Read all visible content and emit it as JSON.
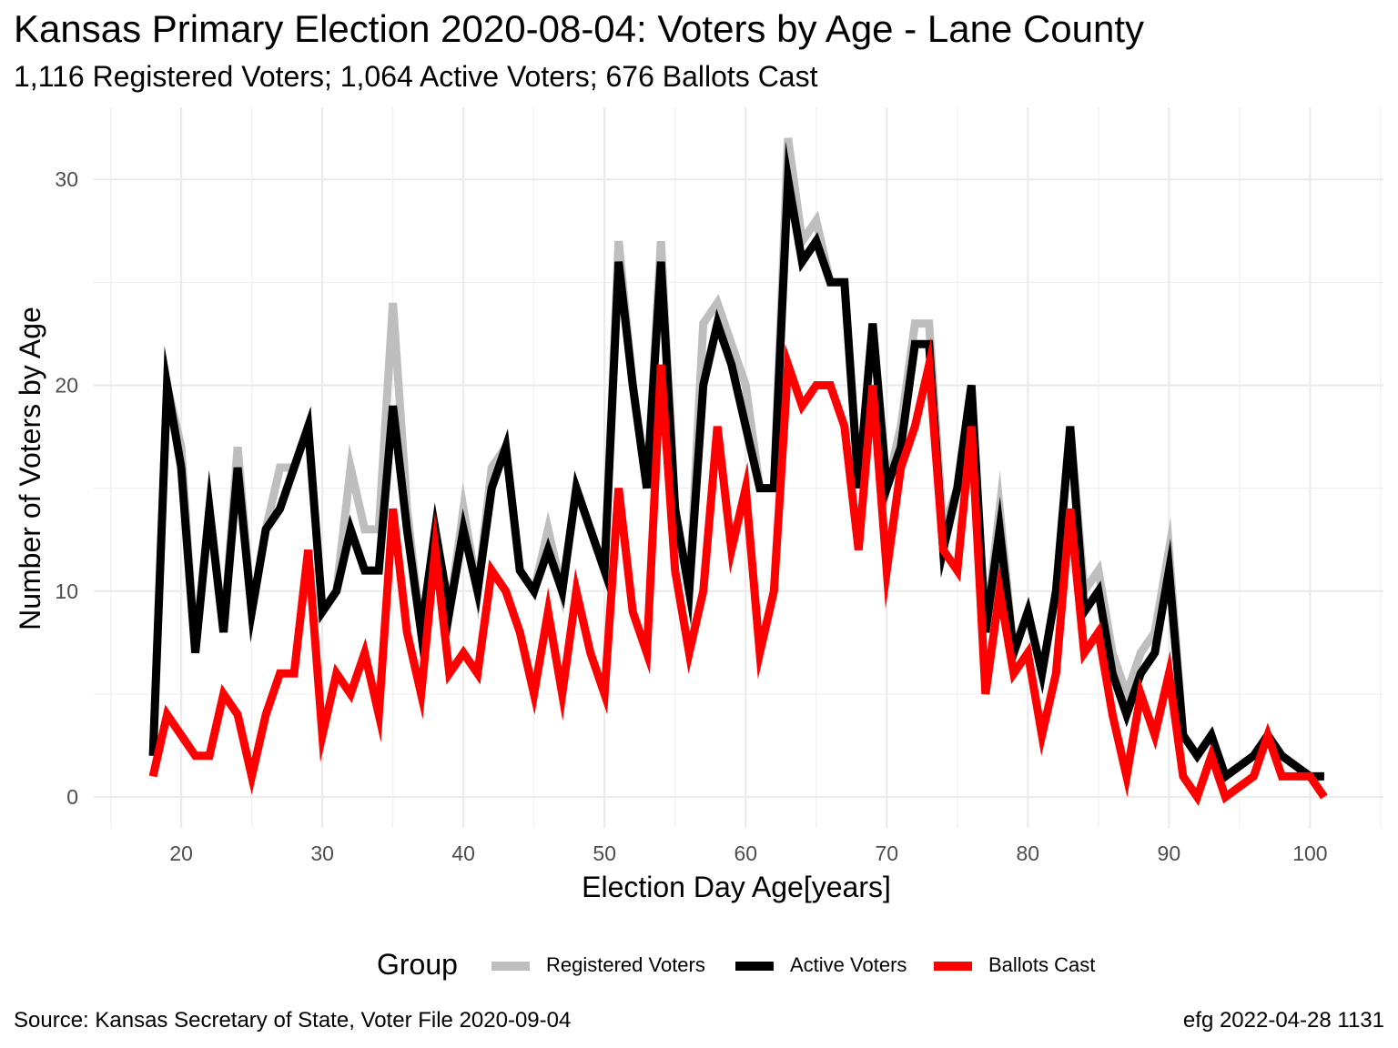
{
  "title": "Kansas Primary Election 2020-08-04:  Voters by Age - Lane County",
  "subtitle": "1,116 Registered Voters; 1,064 Active Voters; 676 Ballots Cast",
  "caption_left": "Source:  Kansas Secretary of State, Voter File  2020-09-04",
  "caption_right": "efg 2022-04-28 1131",
  "legend": {
    "title": "Group",
    "items": [
      {
        "label": "Registered Voters",
        "color": "#bebebe"
      },
      {
        "label": "Active Voters",
        "color": "#000000"
      },
      {
        "label": "Ballots Cast",
        "color": "#ff0000"
      }
    ]
  },
  "chart_data": {
    "type": "line",
    "title": "Kansas Primary Election 2020-08-04:  Voters by Age - Lane County",
    "subtitle": "1,116 Registered Voters; 1,064 Active Voters; 676 Ballots Cast",
    "xlabel": "Election Day Age[years]",
    "ylabel": "Number of Voters by Age",
    "xlim": [
      13.8,
      105.2
    ],
    "ylim": [
      -1.5,
      33.5
    ],
    "xticks": [
      20,
      30,
      40,
      50,
      60,
      70,
      80,
      90,
      100
    ],
    "yticks": [
      0,
      10,
      20,
      30
    ],
    "grid": true,
    "legend_position": "bottom",
    "x": [
      18,
      19,
      20,
      21,
      22,
      23,
      24,
      25,
      26,
      27,
      28,
      29,
      30,
      31,
      32,
      33,
      34,
      35,
      36,
      37,
      38,
      39,
      40,
      41,
      42,
      43,
      44,
      45,
      46,
      47,
      48,
      49,
      50,
      51,
      52,
      53,
      54,
      55,
      56,
      57,
      58,
      59,
      60,
      61,
      62,
      63,
      64,
      65,
      66,
      67,
      68,
      69,
      70,
      71,
      72,
      73,
      74,
      75,
      76,
      77,
      78,
      79,
      80,
      81,
      82,
      83,
      84,
      85,
      86,
      87,
      88,
      89,
      90,
      91,
      92,
      93,
      94,
      95,
      96,
      97,
      98,
      99,
      100,
      101
    ],
    "series": [
      {
        "name": "Registered Voters",
        "color": "#bebebe",
        "values": [
          2,
          20,
          17,
          7,
          14,
          8,
          17,
          9,
          13,
          16,
          16,
          18,
          9,
          10,
          16,
          13,
          13,
          24,
          14,
          8,
          13,
          9,
          14,
          10,
          16,
          17,
          11,
          10,
          13,
          10,
          15,
          13,
          11,
          27,
          20,
          15,
          27,
          14,
          10,
          23,
          24,
          22,
          20,
          15,
          15,
          32,
          27,
          28,
          25,
          25,
          15,
          23,
          15,
          18,
          23,
          23,
          13,
          15,
          20,
          8,
          14,
          7,
          9,
          6,
          10,
          18,
          10,
          11,
          7,
          5,
          7,
          8,
          12,
          3,
          2,
          3,
          1,
          1.5,
          2,
          3,
          2,
          1.5,
          1,
          1
        ]
      },
      {
        "name": "Active Voters",
        "color": "#000000",
        "values": [
          2,
          20,
          16,
          7,
          14,
          8,
          16,
          9,
          13,
          14,
          16,
          18,
          9,
          10,
          13,
          11,
          11,
          19,
          13,
          8,
          13,
          9,
          13,
          10,
          15,
          17,
          11,
          10,
          12,
          10,
          15,
          13,
          11,
          26,
          20,
          15,
          26,
          14,
          10,
          20,
          23,
          21,
          18,
          15,
          15,
          30,
          26,
          27,
          25,
          25,
          15,
          23,
          15,
          17,
          22,
          22,
          12,
          15,
          20,
          8,
          13,
          7,
          9,
          6,
          10,
          18,
          9,
          10,
          6,
          4,
          6,
          7,
          11,
          3,
          2,
          3,
          1,
          1.5,
          2,
          3,
          2,
          1.5,
          1,
          1
        ]
      },
      {
        "name": "Ballots Cast",
        "color": "#ff0000",
        "values": [
          1,
          4,
          3,
          2,
          2,
          5,
          4,
          1,
          4,
          6,
          6,
          12,
          3,
          6,
          5,
          7,
          4,
          14,
          8,
          5,
          12,
          6,
          7,
          6,
          11,
          10,
          8,
          5,
          9,
          5,
          10,
          7,
          5,
          15,
          9,
          7,
          21,
          11,
          7,
          10,
          18,
          12,
          15,
          7,
          10,
          21,
          19,
          20,
          20,
          18,
          12,
          20,
          11,
          16,
          18,
          21,
          12,
          11,
          18,
          5,
          10,
          6,
          7,
          3,
          6,
          14,
          7,
          8,
          4,
          1,
          5,
          3,
          6,
          1,
          0,
          2,
          0,
          0.5,
          1,
          3,
          1,
          1,
          1,
          0
        ]
      }
    ]
  }
}
